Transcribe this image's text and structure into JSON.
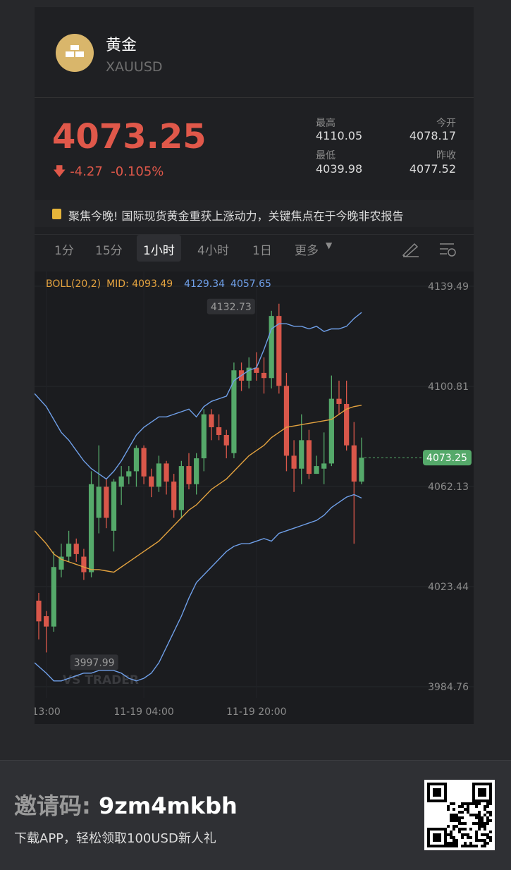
{
  "header": {
    "name": "黄金",
    "symbol": "XAUUSD"
  },
  "quote": {
    "price": "4073.25",
    "change": "-4.27",
    "change_pct": "-0.105%",
    "stats": [
      {
        "label": "最高",
        "value": "4110.05"
      },
      {
        "label": "今开",
        "value": "4078.17"
      },
      {
        "label": "最低",
        "value": "4039.98"
      },
      {
        "label": "昨收",
        "value": "4077.52"
      }
    ]
  },
  "news": "聚焦今晚! 国际现货黄金重获上涨动力，关键焦点在于今晚非农报告",
  "tabs": {
    "items": [
      "1分",
      "15分",
      "1小时",
      "4小时",
      "1日",
      "更多"
    ],
    "active": 2
  },
  "chart_data": {
    "type": "candlestick",
    "legend": [
      {
        "text": "BOLL(20,2)",
        "color": "#e3a23f"
      },
      {
        "text": "MID: 4093.49",
        "color": "#e3a23f"
      },
      {
        "text": "4129.34",
        "color": "#6f9fe8"
      },
      {
        "text": "4057.65",
        "color": "#6f9fe8"
      }
    ],
    "categories": [
      null,
      "13:00",
      null,
      null,
      null,
      null,
      null,
      null,
      null,
      null,
      null,
      null,
      null,
      null,
      "11-19 04:00",
      null,
      null,
      null,
      null,
      null,
      null,
      null,
      null,
      null,
      null,
      null,
      null,
      null,
      null,
      "11-19 20:00",
      null,
      null,
      null,
      null,
      null,
      null,
      null,
      null,
      null,
      null,
      null,
      null,
      null,
      null
    ],
    "open": [
      4018,
      4012,
      4008,
      4030,
      4035,
      4040,
      4035,
      4029,
      4050,
      4062,
      4045,
      4062,
      4066,
      4068,
      4077,
      4066,
      4062,
      4071,
      4064,
      4053,
      4070,
      4063,
      4073,
      4090,
      4085,
      4082,
      4075,
      4107,
      4103,
      4108,
      4106,
      4104,
      4128,
      4101,
      4074,
      4069,
      4080,
      4067,
      4069,
      4071,
      4096,
      4094,
      4078,
      4064
    ],
    "high": [
      4021,
      4014,
      4037,
      4040,
      4045,
      4042,
      4038,
      4068,
      4078,
      4065,
      4065,
      4070,
      4070,
      4078,
      4078,
      4069,
      4074,
      4072,
      4067,
      4072,
      4075,
      4075,
      4092,
      4092,
      4090,
      4084,
      4110,
      4110,
      4112,
      4114,
      4112,
      4130,
      4132.73,
      4106,
      4080,
      4090,
      4084,
      4074,
      4083,
      4105,
      4103,
      4103,
      4087,
      4081
    ],
    "low": [
      4003,
      3997.99,
      4006,
      4027,
      4033,
      4033,
      4026,
      4027,
      4044,
      4046,
      4037,
      4055,
      4063,
      4062,
      4063,
      4058,
      4060,
      4059,
      4050,
      4050,
      4061,
      4059,
      4068,
      4080,
      4080,
      4073,
      4073,
      4099,
      4100,
      4103,
      4098,
      4100,
      4098,
      4068,
      4060,
      4063,
      4065,
      4067,
      4063,
      4070,
      4090,
      4076,
      4039.98,
      4063
    ],
    "close": [
      4010,
      4008,
      4031,
      4035,
      4040,
      4036,
      4029,
      4063,
      4062,
      4050,
      4064,
      4066,
      4068,
      4077,
      4066,
      4062,
      4071,
      4064,
      4053,
      4070,
      4063,
      4073,
      4090,
      4085,
      4082,
      4078,
      4107,
      4103,
      4108,
      4106,
      4104,
      4128,
      4101,
      4074,
      4069,
      4080,
      4067,
      4070,
      4071,
      4096,
      4094,
      4078,
      4064,
      4073.25
    ],
    "up_color": "#55a96a",
    "down_color": "#d9574a",
    "indicator_lines": [
      {
        "color": "#6f9fe8",
        "values": [
          4098,
          4093,
          4088,
          4083,
          4080,
          4076,
          4072,
          4069,
          4067,
          4065,
          4068,
          4072,
          4077,
          4082,
          4085,
          4087,
          4089,
          4089,
          4090,
          4091,
          4092,
          4089,
          4093,
          4095,
          4096,
          4097,
          4103,
          4105,
          4107,
          4108,
          4115,
          4123,
          4125,
          4125,
          4124,
          4124,
          4123,
          4124,
          4122,
          4123,
          4123,
          4124,
          4127,
          4129.34
        ]
      },
      {
        "color": "#e3a23f",
        "values": [
          4045,
          4040,
          4036,
          4034,
          4033,
          4032,
          4031,
          4030,
          4030,
          4029.5,
          4029,
          4031,
          4033,
          4035,
          4037,
          4039,
          4041,
          4044,
          4047,
          4050,
          4053,
          4055,
          4058,
          4061,
          4063,
          4065,
          4068,
          4071,
          4074,
          4076,
          4078,
          4081,
          4083,
          4085,
          4085.5,
          4086,
          4086.5,
          4087,
          4087.5,
          4088,
          4090,
          4092,
          4093,
          4093.49
        ]
      },
      {
        "color": "#6f9fe8",
        "values": [
          3994,
          3990,
          3987,
          3987,
          3988,
          3989,
          3990,
          3990,
          3991,
          3991,
          3991,
          3990,
          3988,
          3987,
          3988,
          3990,
          3994,
          4000,
          4006,
          4012,
          4019,
          4025,
          4028,
          4031,
          4034,
          4037,
          4039,
          4040,
          4040,
          4041,
          4042,
          4041,
          4044,
          4045,
          4046,
          4047,
          4048,
          4049,
          4051,
          4054,
          4056,
          4058,
          4059,
          4057.65
        ]
      }
    ],
    "ylim": [
      3980.4,
      4145.2
    ],
    "yticks": [
      3984.76,
      4023.44,
      4062.13,
      4100.81,
      4139.49
    ],
    "grid": true,
    "max_label": "4132.73",
    "min_label": "3997.99",
    "last_price_label": "4073.25",
    "watermark": "VS TRADER"
  },
  "footer": {
    "invite_label": "邀请码:",
    "invite_code": "9zm4mkbh",
    "subtitle": "下载APP，轻松领取100USD新人礼"
  }
}
